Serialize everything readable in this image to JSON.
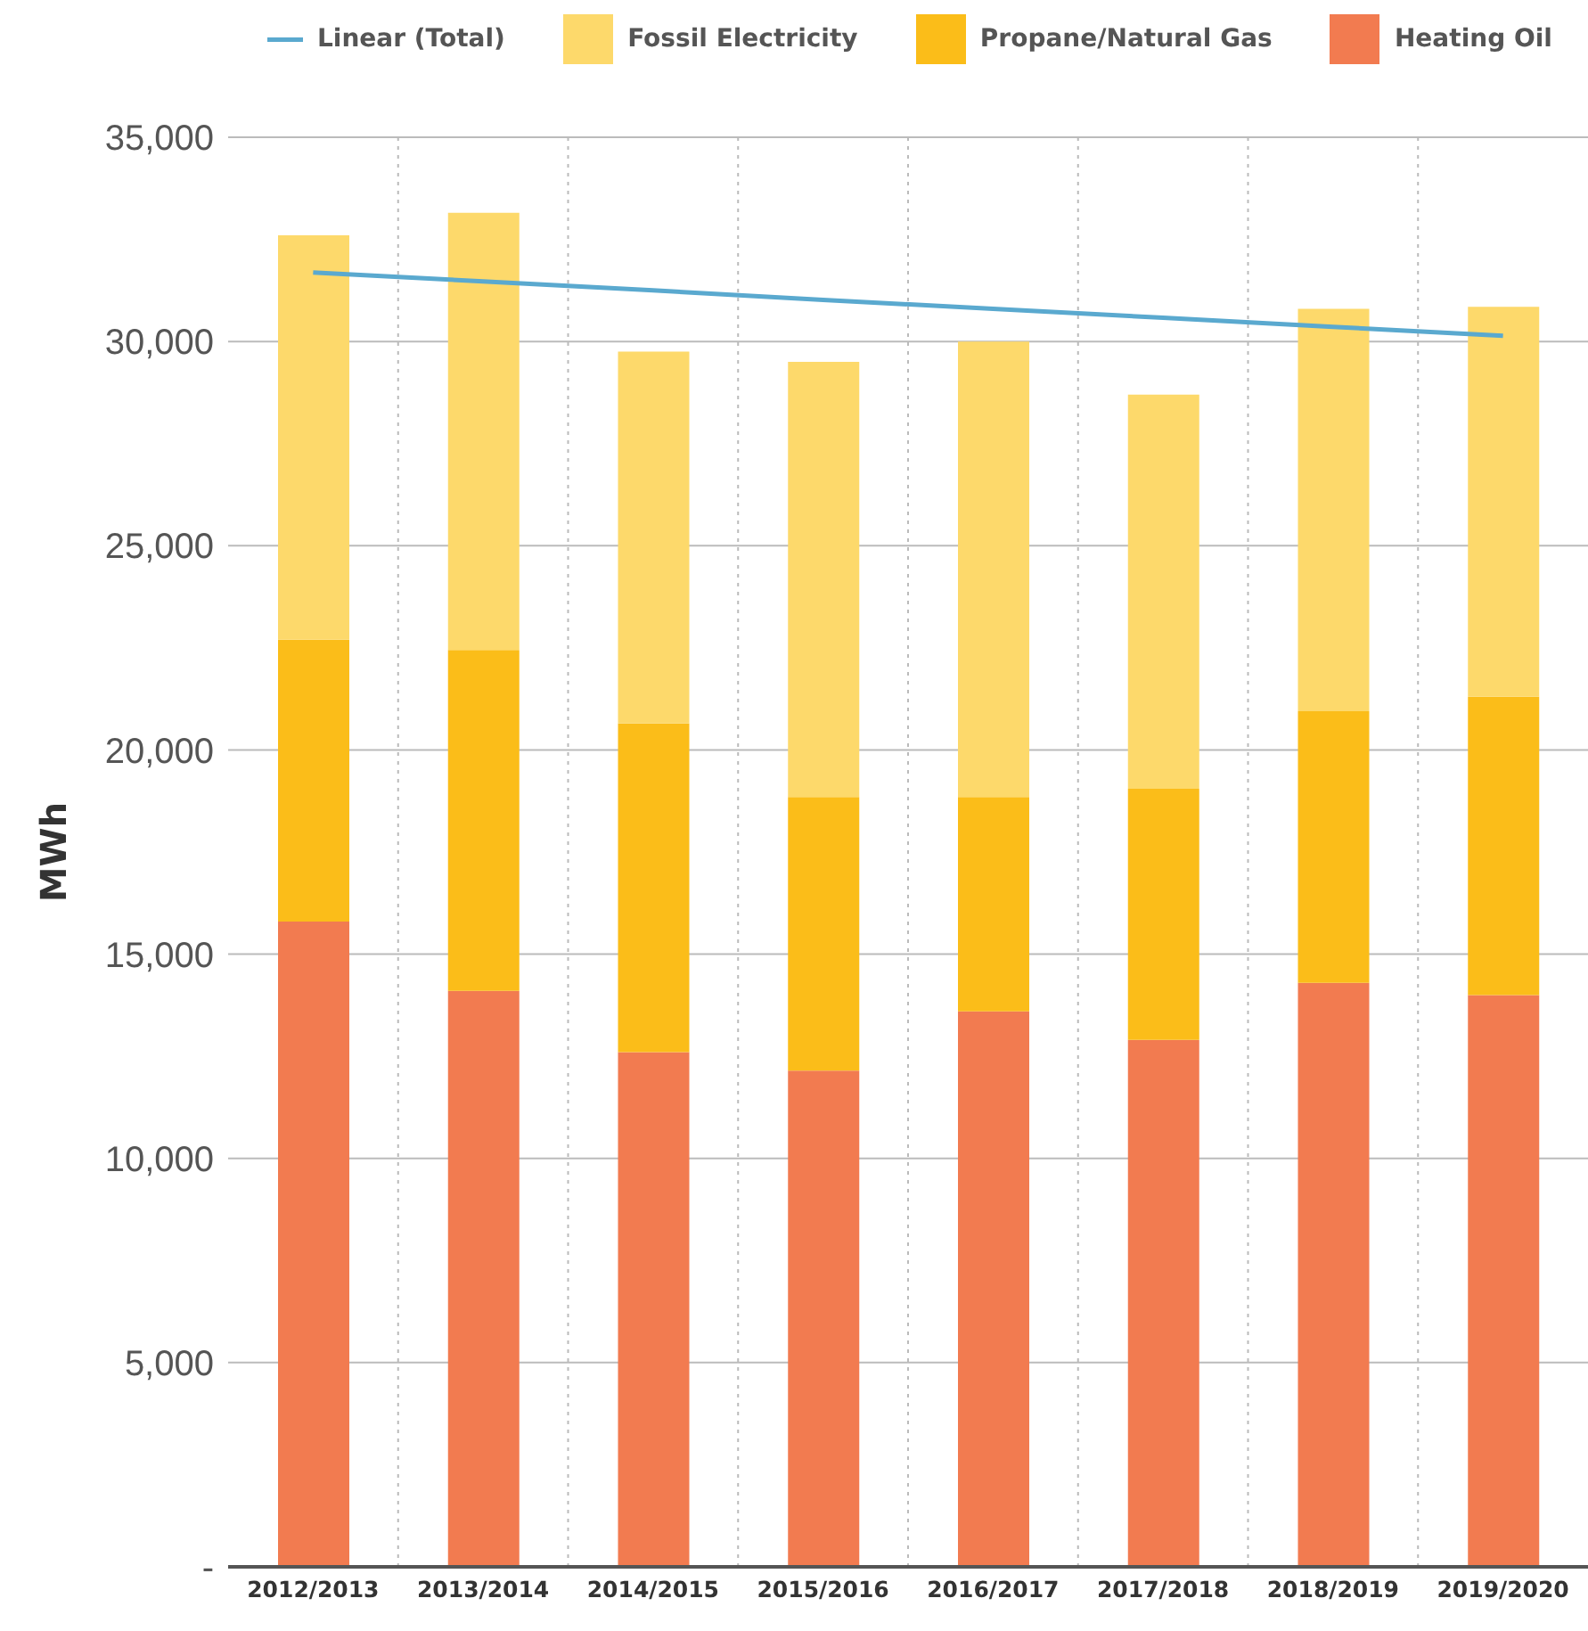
{
  "chart_data": {
    "type": "bar",
    "stacked": true,
    "ylabel": "MWh",
    "categories": [
      "2012/2013",
      "2013/2014",
      "2014/2015",
      "2015/2016",
      "2016/2017",
      "2017/2018",
      "2018/2019",
      "2019/2020"
    ],
    "series": [
      {
        "name": "Heating Oil",
        "color": "#f27b50",
        "values": [
          15800,
          14100,
          12600,
          12150,
          13600,
          12900,
          14300,
          14000
        ]
      },
      {
        "name": "Propane/Natural Gas",
        "color": "#fbbd19",
        "values": [
          6900,
          8350,
          8050,
          6700,
          5250,
          6150,
          6650,
          7300
        ]
      },
      {
        "name": "Fossil Electricity",
        "color": "#fdd96b",
        "values": [
          9900,
          10700,
          9100,
          10650,
          11150,
          9650,
          9850,
          9550
        ]
      },
      {
        "name": "Linear (Total)",
        "type": "line",
        "color": "#5aa9cf",
        "values": [
          31690,
          31470,
          31250,
          31020,
          30800,
          30580,
          30360,
          30140
        ]
      }
    ],
    "ylim": [
      0,
      35000
    ],
    "yticks": [
      {
        "value": 0,
        "label": "-"
      },
      {
        "value": 5000,
        "label": "5,000"
      },
      {
        "value": 10000,
        "label": "10,000"
      },
      {
        "value": 15000,
        "label": "15,000"
      },
      {
        "value": 20000,
        "label": "20,000"
      },
      {
        "value": 25000,
        "label": "25,000"
      },
      {
        "value": 30000,
        "label": "30,000"
      },
      {
        "value": 35000,
        "label": "35,000"
      }
    ],
    "grid": true,
    "legend": "top",
    "marker": "none"
  }
}
